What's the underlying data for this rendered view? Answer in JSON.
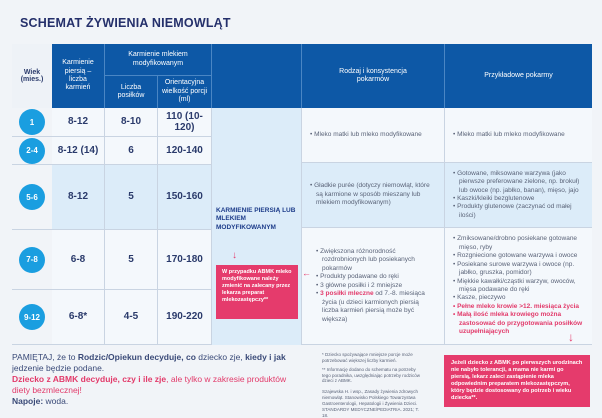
{
  "title": "SCHEMAT ŻYWIENIA NIEMOWLĄT",
  "headers": {
    "age": "Wiek (mies.)",
    "breast": "Karmienie piersią – liczba karmień",
    "formula": "Karmienie mlekiem modyfikowanym",
    "meals": "Liczba posiłków",
    "portion": "Orientacyjna wielkość porcji (ml)",
    "type": "Rodzaj i konsystencja pokarmów",
    "examples": "Przykładowe pokarmy"
  },
  "rows": [
    {
      "age": "1",
      "breast": "8-12",
      "meals": "8-10",
      "portion": "110 (10-120)"
    },
    {
      "age": "2-4",
      "breast": "8-12 (14)",
      "meals": "6",
      "portion": "120-140"
    },
    {
      "age": "5-6",
      "breast": "8-12",
      "meals": "5",
      "portion": "150-160"
    },
    {
      "age": "7-8",
      "breast": "6-8",
      "meals": "5",
      "portion": "170-180"
    },
    {
      "age": "9-12",
      "breast": "6-8*",
      "meals": "4-5",
      "portion": "190-220"
    }
  ],
  "feeding_label": "KARMIENIE PIERSIĄ LUB MLEKIEM MODYFIKOWANYM",
  "abmk_note": "W przypadku ABMK mleko modyfikowane należy zmienić na zalecany przez lekarza preparat mlekozastępczy**",
  "type": {
    "g1": [
      "Mleko matki lub mleko modyfikowane"
    ],
    "g2": [
      "Gładkie purée (dotyczy niemowląt, które są karmione w sposób mieszany lub mlekiem modyfikowanym)"
    ],
    "g3": [
      "Zwiększona różnorodność rozdrobnionych lub posiekanych pokarmów",
      "Produkty podawane do ręki",
      "3 główne posiłki i 2 mniejsze"
    ],
    "g3_pink": "3 posiłki mleczne",
    "g3_rest": "od 7.-8. miesiąca życia (u dzieci karmionych piersią liczba karmień piersią może być większa)"
  },
  "examples": {
    "g1": [
      "Mleko matki lub mleko modyfikowane"
    ],
    "g2": [
      "Gotowane, miksowane warzywa (jako pierwsze preferowane zielone, np. brokuł) lub owoce (np. jabłko, banan), mięso, jajo",
      "Kaszki/kleiki bezglutenowe",
      "Produkty glutenowe (zaczynać od małej ilości)"
    ],
    "g3": [
      "Zmiksowane/drobno posiekane gotowane mięso, ryby",
      "Rozgniecione gotowane warzywa i owoce",
      "Posiekane surowe warzywa i owoce (np. jabłko, gruszka, pomidor)",
      "Miękkie kawałki/cząstki warzyw, owoców, mięsa podawane do ręki",
      "Kasze, pieczywo"
    ],
    "g3_pink": [
      "Pełne mleko krowie >12. miesiąca życia",
      "Małą ilość mleka krowiego można zastosować do przygotowania posiłków uzupełniających"
    ]
  },
  "remember": {
    "p1": "PAMIĘTAJ, że to ",
    "b1": "Rodzic/Opiekun decyduje, co",
    "p2": " dziecko zje, ",
    "b2": "kiedy i jak",
    "p3": " jedzenie będzie podane.",
    "pb": "Dziecko z ABMK decyduje, czy i ile zje",
    "pr": ", ale tylko w zakresie produktów diety bezmlecznej!",
    "nb": "Napoje:",
    "nr": " woda."
  },
  "footnotes": [
    "* Dziecko spożywające mniejsze porcje może potrzebować większej liczby karmień.",
    "** Informację dodano do schematu na potrzeby tego poradnika, uwzględniając potrzeby rodziców dzieci z ABMK.",
    "Szajewska H. i wsp., Zasady żywienia zdrowych niemowląt. Stanowisko Polskiego Towarzystwa Gastroenterologii, Hepatologii i Żywienia Dzieci. STANDARDY MEDYCZNE/PEDIATRIA. 2021; T. 18."
  ],
  "abmk_box": "Jeżeli dziecko z ABMK po pierwszych urodzinach nie nabyło tolerancji, a mama nie karmi go piersią, lekarz zaleci zastąpienie mleka odpowiednim preparatem mlekozastępczym, który będzie dostosowany do potrzeb i wieku dziecka**.",
  "colors": {
    "header": "#0d58a6",
    "accent": "#e53b6c",
    "circle": "#1a9ee0"
  }
}
